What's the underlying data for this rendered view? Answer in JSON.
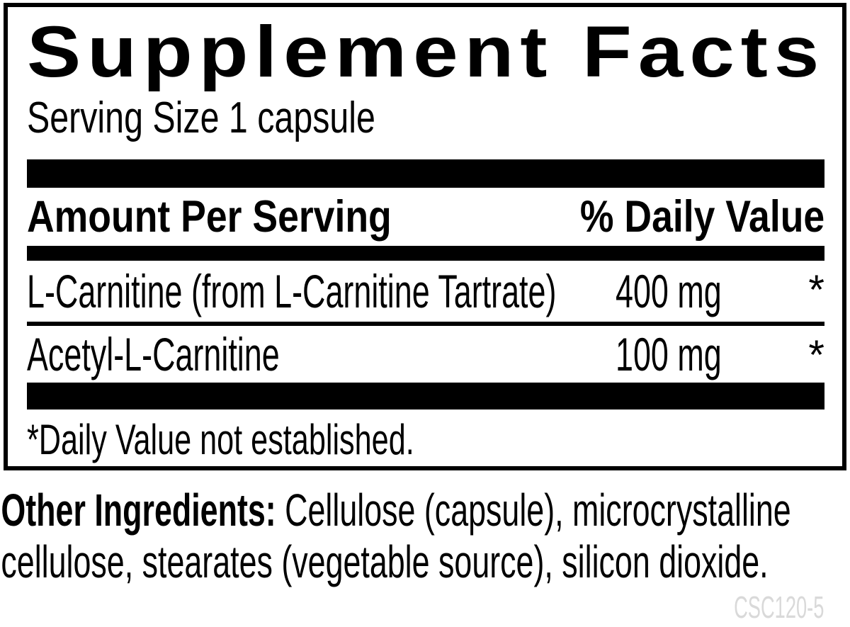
{
  "label": {
    "title": "Supplement Facts",
    "serving_size": "Serving Size 1 capsule",
    "columns": {
      "amount_header": "Amount Per Serving",
      "daily_value_header": "% Daily Value"
    },
    "rows": [
      {
        "name": "L-Carnitine (from L-Carnitine Tartrate)",
        "amount": "400 mg",
        "daily_value": "*"
      },
      {
        "name": "Acetyl-L-Carnitine",
        "amount": "100 mg",
        "daily_value": "*"
      }
    ],
    "footnote": "*Daily Value not established."
  },
  "other_ingredients": {
    "label": "Other Ingredients:",
    "text": " Cellulose (capsule), microcrystalline cellulose, stearates (vegetable source), silicon dioxide."
  },
  "product_code": "CSC120-5",
  "colors": {
    "text": "#000000",
    "background": "#ffffff",
    "product_code_gray": "#d9d9d9"
  }
}
